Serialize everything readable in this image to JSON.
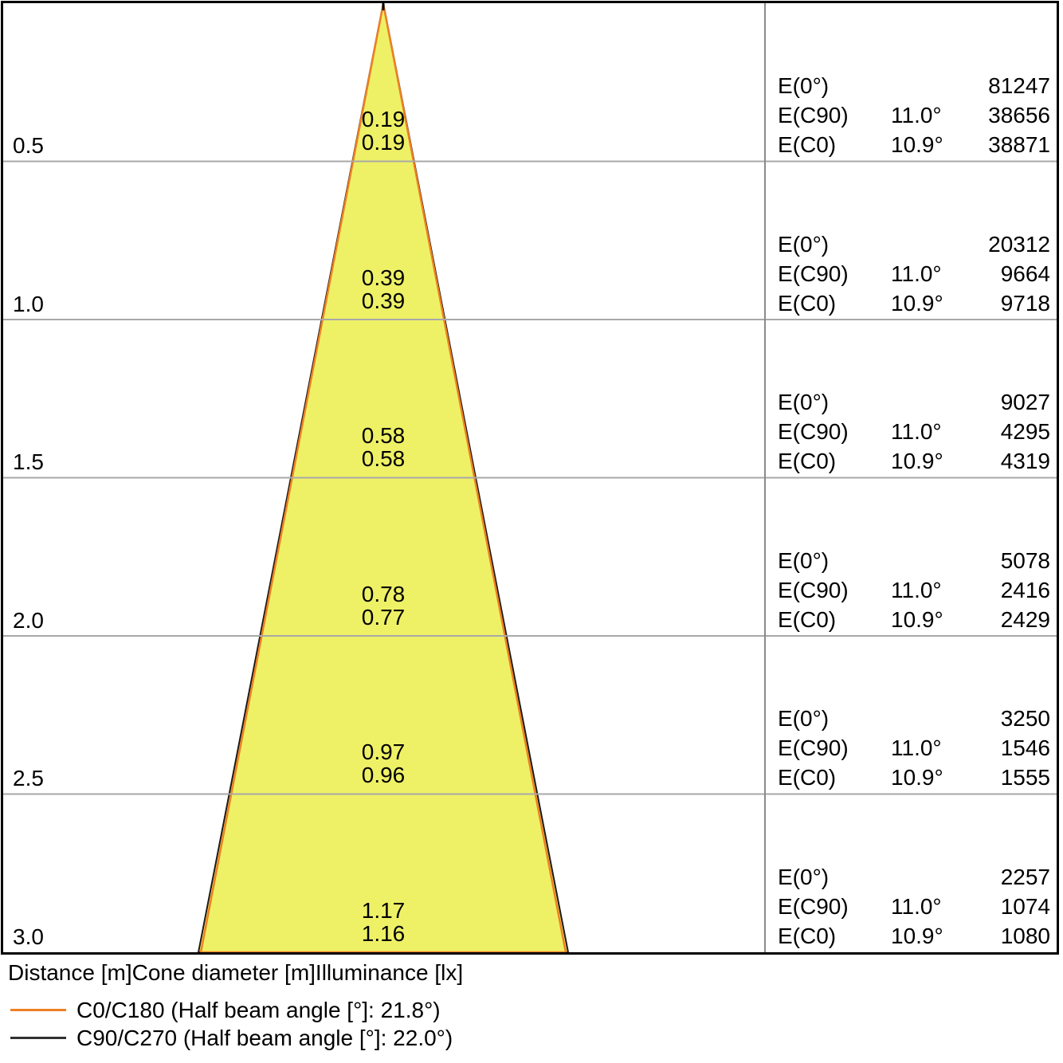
{
  "figure": {
    "footer_caption": "Distance [m]Cone diameter [m]Illuminance [lx]"
  },
  "table": {
    "labels": {
      "e0": "E(0°)",
      "ec90": "E(C90)",
      "ec0": "E(C0)"
    },
    "angles": {
      "ec90": "11.0°",
      "ec0": "10.9°"
    }
  },
  "rows": [
    {
      "distance": "0.5",
      "dia_c90": "0.19",
      "dia_c0": "0.19",
      "e0": "81247",
      "ec90": "38656",
      "ec0": "38871"
    },
    {
      "distance": "1.0",
      "dia_c90": "0.39",
      "dia_c0": "0.39",
      "e0": "20312",
      "ec90": "9664",
      "ec0": "9718"
    },
    {
      "distance": "1.5",
      "dia_c90": "0.58",
      "dia_c0": "0.58",
      "e0": "9027",
      "ec90": "4295",
      "ec0": "4319"
    },
    {
      "distance": "2.0",
      "dia_c90": "0.78",
      "dia_c0": "0.77",
      "e0": "5078",
      "ec90": "2416",
      "ec0": "2429"
    },
    {
      "distance": "2.5",
      "dia_c90": "0.97",
      "dia_c0": "0.96",
      "e0": "3250",
      "ec90": "1546",
      "ec0": "1555"
    },
    {
      "distance": "3.0",
      "dia_c90": "1.17",
      "dia_c0": "1.16",
      "e0": "2257",
      "ec90": "1074",
      "ec0": "1080"
    }
  ],
  "legend": [
    {
      "label": "C0/C180 (Half beam angle [°]: 21.8°)",
      "color": "#EF8023"
    },
    {
      "label": "C90/C270 (Half beam angle [°]: 22.0°)",
      "color": "#303030"
    }
  ],
  "colors": {
    "cone_fill": "#EEF166",
    "cone_edge_c90": "#1a1a1a",
    "cone_edge_c0": "#EF8023",
    "grid": "#A8A8A8",
    "divider": "#8a8a8a"
  },
  "chart_data": {
    "type": "line",
    "subtype": "luminaire-light-cone-diagram",
    "title": "",
    "xlabel": "Distance [m]",
    "columns": [
      "Distance [m]",
      "Cone diameter [m]",
      "Illuminance [lx]"
    ],
    "distances_m": [
      0.5,
      1.0,
      1.5,
      2.0,
      2.5,
      3.0
    ],
    "series": [
      {
        "name": "C0/C180",
        "half_beam_angle_label": "Half beam angle [°]: 21.8°",
        "half_beam_angle_deg": 21.8,
        "e_half_angle_deg": 10.9,
        "color": "#EF8023",
        "cone_diameter_m": [
          0.19,
          0.39,
          0.58,
          0.77,
          0.96,
          1.16
        ],
        "illuminance_lx": [
          38871,
          9718,
          4319,
          2429,
          1555,
          1080
        ]
      },
      {
        "name": "C90/C270",
        "half_beam_angle_label": "Half beam angle [°]: 22.0°",
        "half_beam_angle_deg": 22.0,
        "e_half_angle_deg": 11.0,
        "color": "#303030",
        "cone_diameter_m": [
          0.19,
          0.39,
          0.58,
          0.78,
          0.97,
          1.17
        ],
        "illuminance_lx": [
          38656,
          9664,
          4295,
          2416,
          1546,
          1074
        ]
      }
    ],
    "central_illuminance_e0_lx": [
      81247,
      20312,
      9027,
      5078,
      3250,
      2257
    ],
    "cone_fill_color": "#EEF166",
    "legend_position": "bottom-left",
    "grid": true
  }
}
